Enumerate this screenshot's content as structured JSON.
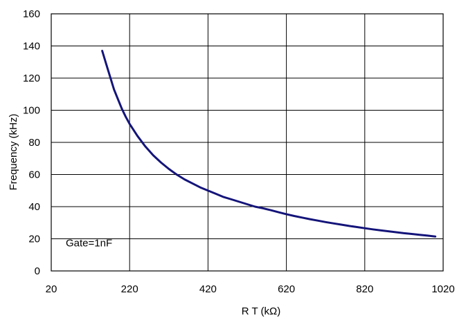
{
  "chart_data": {
    "type": "line",
    "xlabel": "R T (kΩ)",
    "ylabel": "Frequency (kHz)",
    "xlim": [
      20,
      1020
    ],
    "ylim": [
      0,
      160
    ],
    "xticks": [
      20,
      220,
      420,
      620,
      820,
      1020
    ],
    "yticks": [
      0,
      20,
      40,
      60,
      80,
      100,
      120,
      140,
      160
    ],
    "xtick_labels": [
      "20",
      "220",
      "420",
      "620",
      "820",
      "1020"
    ],
    "ytick_labels": [
      "0",
      "20",
      "40",
      "60",
      "80",
      "100",
      "120",
      "140",
      "160"
    ],
    "grid": true,
    "annotation": "Gate=1nF",
    "colors": {
      "series": "#14147a",
      "grid": "#000000",
      "background": "#ffffff"
    },
    "series": [
      {
        "x": [
          150,
          160,
          170,
          180,
          190,
          200,
          210,
          220,
          240,
          260,
          280,
          300,
          320,
          340,
          360,
          380,
          400,
          420,
          440,
          460,
          480,
          500,
          520,
          540,
          560,
          580,
          600,
          620,
          640,
          660,
          680,
          700,
          720,
          740,
          760,
          780,
          800,
          820,
          840,
          860,
          880,
          900,
          920,
          940,
          960,
          980,
          1000
        ],
        "y": [
          137,
          129,
          121,
          113,
          107,
          101,
          96,
          91.5,
          84,
          77.5,
          72,
          67.5,
          63.5,
          60,
          57,
          54.5,
          52,
          50,
          48,
          46,
          44.5,
          43,
          41.5,
          40,
          39,
          37.8,
          36.5,
          35.3,
          34.2,
          33.2,
          32.2,
          31.3,
          30.4,
          29.6,
          28.8,
          28,
          27.3,
          26.6,
          25.9,
          25.3,
          24.7,
          24.1,
          23.5,
          23,
          22.5,
          22,
          21.4
        ]
      }
    ]
  }
}
